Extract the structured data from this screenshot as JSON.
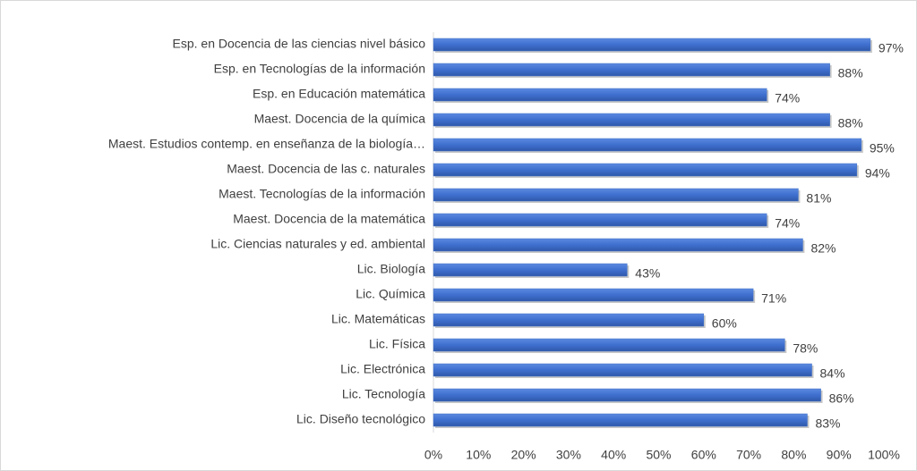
{
  "chart_data": {
    "type": "bar",
    "orientation": "horizontal",
    "categories": [
      "Esp. en Docencia de las ciencias nivel básico",
      "Esp. en Tecnologías de la información",
      "Esp. en Educación matemática",
      "Maest. Docencia de la química",
      "Maest. Estudios contemp. en enseñanza de la biología…",
      "Maest. Docencia de las c. naturales",
      "Maest. Tecnologías de la información",
      "Maest. Docencia de la matemática",
      "Lic. Ciencias naturales y ed. ambiental",
      "Lic. Biología",
      "Lic. Química",
      "Lic. Matemáticas",
      "Lic. Física",
      "Lic. Electrónica",
      "Lic. Tecnología",
      "Lic. Diseño tecnológico"
    ],
    "values": [
      97,
      88,
      74,
      88,
      95,
      94,
      81,
      74,
      82,
      43,
      71,
      60,
      78,
      84,
      86,
      83
    ],
    "value_labels": [
      "97%",
      "88%",
      "74%",
      "88%",
      "95%",
      "94%",
      "81%",
      "74%",
      "82%",
      "43%",
      "71%",
      "60%",
      "78%",
      "84%",
      "86%",
      "83%"
    ],
    "color": "#4472c4",
    "xlim": [
      0,
      100
    ],
    "xticks": [
      {
        "value": 0,
        "label": "0%"
      },
      {
        "value": 10,
        "label": "10%"
      },
      {
        "value": 20,
        "label": "20%"
      },
      {
        "value": 30,
        "label": "30%"
      },
      {
        "value": 40,
        "label": "40%"
      },
      {
        "value": 50,
        "label": "50%"
      },
      {
        "value": 60,
        "label": "60%"
      },
      {
        "value": 70,
        "label": "70%"
      },
      {
        "value": 80,
        "label": "80%"
      },
      {
        "value": 90,
        "label": "90%"
      },
      {
        "value": 100,
        "label": "100%"
      }
    ],
    "grid": false
  }
}
